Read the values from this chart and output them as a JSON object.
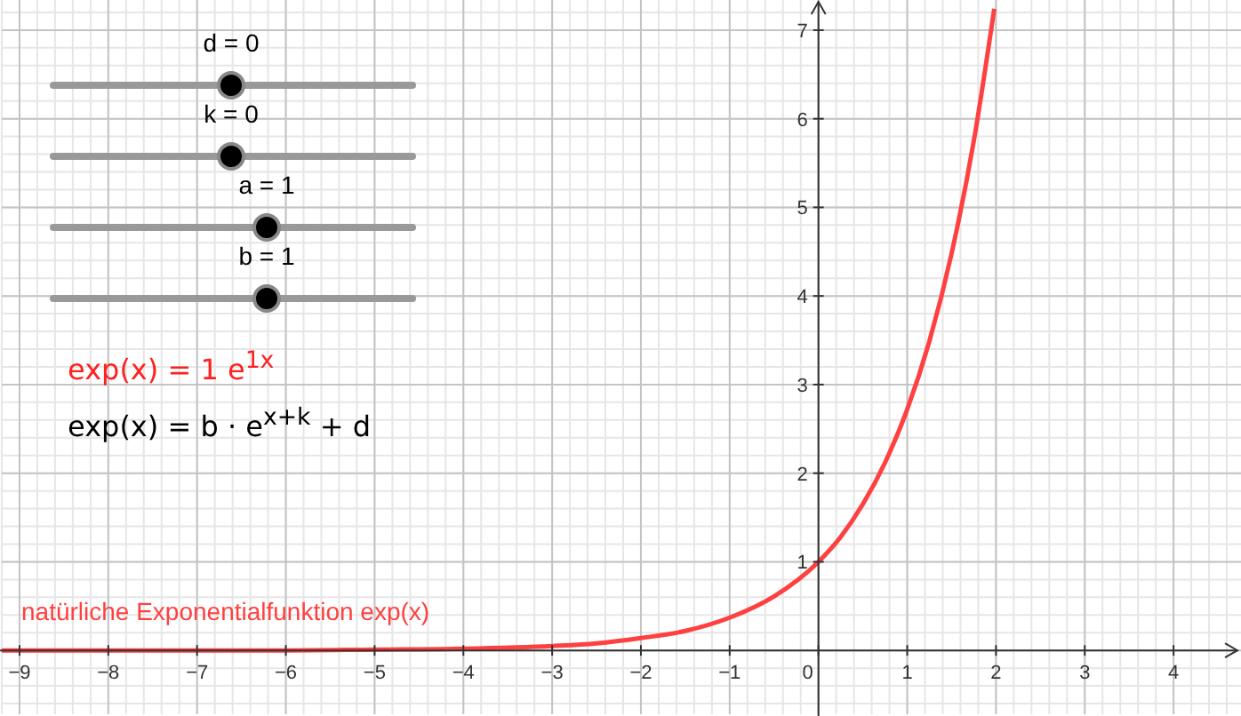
{
  "chart_data": {
    "type": "line",
    "x": [
      -9.2,
      -8,
      -7,
      -6,
      -5,
      -4,
      -3,
      -2.5,
      -2,
      -1.5,
      -1,
      -0.5,
      0,
      0.25,
      0.5,
      0.75,
      1,
      1.25,
      1.5,
      1.75,
      1.98
    ],
    "series": [
      {
        "name": "natürliche Exponentialfunktion exp(x)",
        "color": "#ff4040",
        "values": [
          0,
          0,
          0,
          0,
          0.01,
          0.02,
          0.05,
          0.08,
          0.14,
          0.22,
          0.37,
          0.61,
          1,
          1.28,
          1.65,
          2.12,
          2.72,
          3.49,
          4.48,
          5.75,
          7.24
        ]
      }
    ],
    "xlim": [
      -9.2,
      4.76
    ],
    "ylim": [
      -0.72,
      7.34
    ],
    "xticks": [
      -9,
      -8,
      -7,
      -6,
      -5,
      -4,
      -3,
      -2,
      -1,
      0,
      1,
      2,
      3,
      4
    ],
    "yticks": [
      1,
      2,
      3,
      4,
      5,
      6,
      7
    ],
    "grid": true,
    "marker": "none",
    "line_style": "solid",
    "annotations": [
      "d = 0",
      "k = 0",
      "a = 1",
      "b = 1",
      "exp(x) = 1 e$^{1x}$",
      "exp(x) = b · e$^{x+k}$ + d"
    ]
  }
}
